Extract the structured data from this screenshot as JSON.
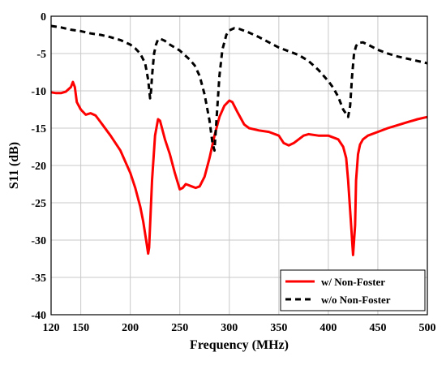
{
  "chart_data": {
    "type": "line",
    "title": "",
    "xlabel": "Frequency (MHz)",
    "ylabel": "S11 (dB)",
    "xlim": [
      120,
      500
    ],
    "ylim": [
      -40,
      0
    ],
    "xticks": [
      120,
      150,
      200,
      250,
      300,
      350,
      400,
      450,
      500
    ],
    "yticks": [
      0,
      -5,
      -10,
      -15,
      -20,
      -25,
      -30,
      -35,
      -40
    ],
    "grid": true,
    "legend_position": "bottom-right",
    "series": [
      {
        "name": "w/ Non-Foster",
        "color": "#ff0000",
        "style": "solid",
        "x": [
          120,
          125,
          130,
          135,
          140,
          142,
          144,
          146,
          150,
          155,
          160,
          165,
          170,
          180,
          190,
          200,
          205,
          210,
          213,
          216,
          218,
          219,
          220,
          222,
          225,
          228,
          230,
          235,
          240,
          245,
          250,
          253,
          256,
          258,
          262,
          266,
          270,
          275,
          280,
          285,
          290,
          295,
          300,
          303,
          308,
          315,
          320,
          330,
          340,
          350,
          355,
          360,
          365,
          370,
          375,
          380,
          390,
          400,
          410,
          415,
          418,
          420,
          423,
          425,
          427,
          428,
          430,
          432,
          435,
          440,
          450,
          460,
          470,
          480,
          490,
          500
        ],
        "values": [
          -10.2,
          -10.3,
          -10.3,
          -10.1,
          -9.5,
          -8.8,
          -9.5,
          -11.5,
          -12.5,
          -13.2,
          -13.0,
          -13.3,
          -14.2,
          -16.0,
          -18.0,
          -21.0,
          -23.0,
          -25.5,
          -27.5,
          -30.0,
          -31.8,
          -31.0,
          -28.0,
          -22.0,
          -16.0,
          -13.8,
          -14.0,
          -16.5,
          -18.5,
          -21.0,
          -23.2,
          -23.0,
          -22.5,
          -22.6,
          -22.8,
          -23.0,
          -22.8,
          -21.5,
          -19.0,
          -16.0,
          -13.5,
          -12.0,
          -11.3,
          -11.5,
          -12.8,
          -14.5,
          -15.0,
          -15.3,
          -15.5,
          -16.0,
          -17.0,
          -17.3,
          -17.0,
          -16.5,
          -16.0,
          -15.8,
          -16.0,
          -16.0,
          -16.5,
          -17.5,
          -19.0,
          -22.0,
          -28.0,
          -32.0,
          -28.0,
          -22.0,
          -18.5,
          -17.2,
          -16.5,
          -16.0,
          -15.5,
          -15.0,
          -14.6,
          -14.2,
          -13.8,
          -13.5
        ]
      },
      {
        "name": "w/o Non-Foster",
        "color": "#000000",
        "style": "dashed",
        "x": [
          120,
          130,
          140,
          150,
          160,
          170,
          180,
          190,
          200,
          205,
          210,
          215,
          218,
          220,
          221,
          222,
          224,
          226,
          228,
          230,
          235,
          240,
          250,
          260,
          265,
          270,
          275,
          280,
          283,
          285,
          287,
          290,
          293,
          297,
          300,
          305,
          310,
          320,
          330,
          340,
          350,
          360,
          370,
          380,
          390,
          400,
          405,
          410,
          415,
          420,
          422,
          424,
          426,
          428,
          430,
          435,
          440,
          450,
          460,
          470,
          480,
          490,
          500
        ],
        "values": [
          -1.3,
          -1.5,
          -1.8,
          -2.0,
          -2.3,
          -2.5,
          -2.8,
          -3.2,
          -3.8,
          -4.3,
          -5.0,
          -6.3,
          -8.5,
          -11.0,
          -10.0,
          -8.0,
          -5.0,
          -3.8,
          -3.1,
          -3.0,
          -3.3,
          -3.8,
          -4.6,
          -5.8,
          -6.6,
          -8.0,
          -10.5,
          -14.0,
          -17.0,
          -18.0,
          -14.0,
          -8.0,
          -4.5,
          -2.5,
          -1.9,
          -1.6,
          -1.7,
          -2.2,
          -2.8,
          -3.5,
          -4.2,
          -4.7,
          -5.2,
          -6.0,
          -7.2,
          -8.7,
          -9.6,
          -10.8,
          -12.5,
          -13.5,
          -12.0,
          -8.0,
          -5.0,
          -4.0,
          -3.6,
          -3.5,
          -3.8,
          -4.5,
          -5.0,
          -5.4,
          -5.7,
          -6.0,
          -6.3
        ]
      }
    ]
  }
}
